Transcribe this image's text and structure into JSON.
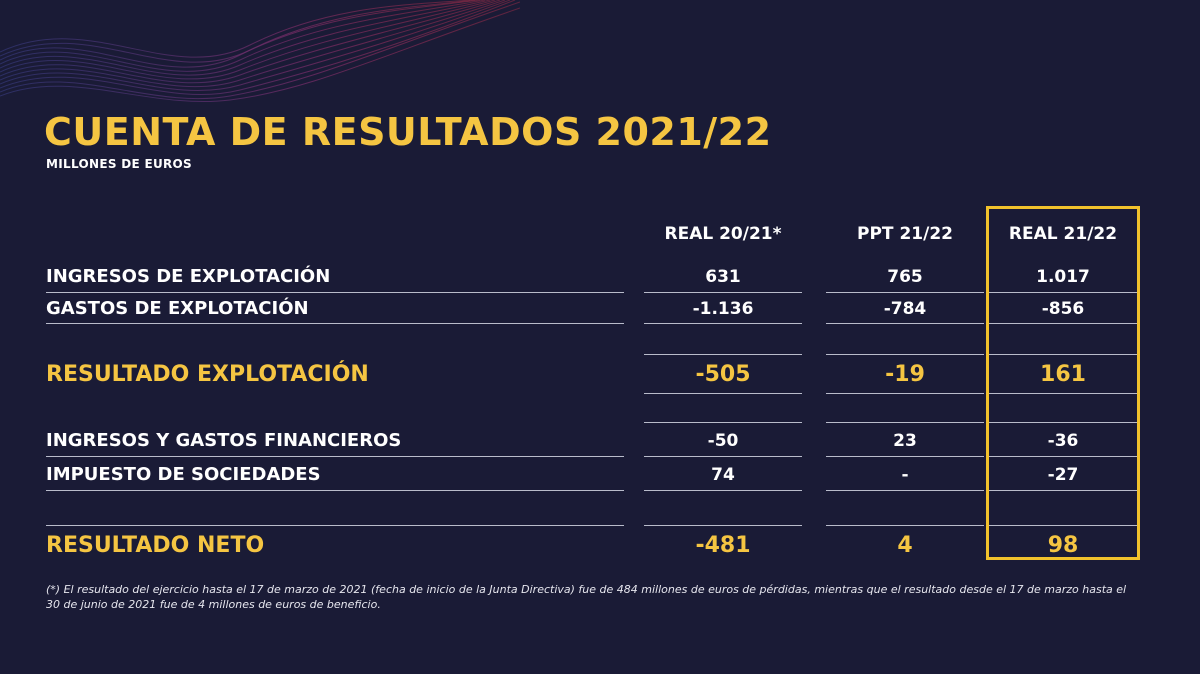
{
  "title": "CUENTA DE RESULTADOS 2021/22",
  "subtitle": "MILLONES DE EUROS",
  "columns": [
    "REAL 20/21*",
    "PPT 21/22",
    "REAL 21/22"
  ],
  "rows": [
    {
      "label": "INGRESOS DE EXPLOTACIÓN",
      "values": [
        "631",
        "765",
        "1.017"
      ]
    },
    {
      "label": "GASTOS DE EXPLOTACIÓN",
      "values": [
        "-1.136",
        "-784",
        "-856"
      ]
    },
    {
      "label": "RESULTADO EXPLOTACIÓN",
      "values": [
        "-505",
        "-19",
        "161"
      ]
    },
    {
      "label": "INGRESOS Y GASTOS FINANCIEROS",
      "values": [
        "-50",
        "23",
        "-36"
      ]
    },
    {
      "label": "IMPUESTO DE SOCIEDADES",
      "values": [
        "74",
        "-",
        "-27"
      ]
    },
    {
      "label": "RESULTADO NETO",
      "values": [
        "-481",
        "4",
        "98"
      ]
    }
  ],
  "footnote": "(*) El resultado del ejercicio hasta el  17 de marzo de 2021 (fecha de inicio de la Junta Directiva) fue de 484 millones de euros de pérdidas, mientras que el resultado desde el 17 de marzo hasta el 30 de junio de 2021 fue de 4 millones de euros de beneficio.",
  "colors": {
    "background": "#1a1b36",
    "accent": "#f5c542",
    "highlight_border": "#f2c22c",
    "text": "#ffffff"
  }
}
